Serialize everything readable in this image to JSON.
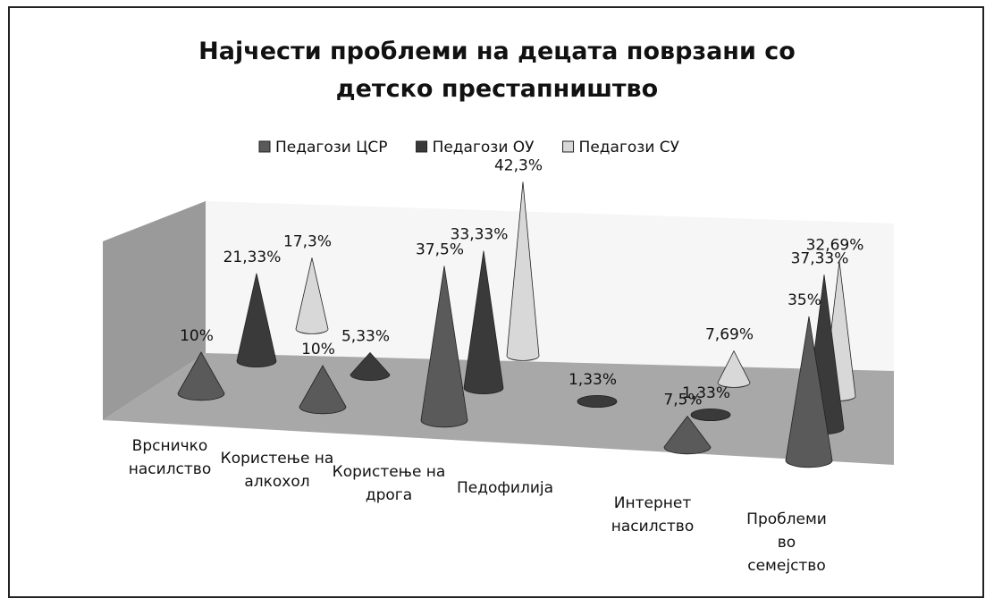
{
  "chart_data": {
    "type": "cone3d",
    "title": "Најчести проблеми на децата поврзани со детско престапништво",
    "categories": [
      "Врсничко насилство",
      "Користење на алкохол",
      "Користење на дрога",
      "Педофилија",
      "Интернет насилство",
      "Проблеми во семејство"
    ],
    "series": [
      {
        "name": "Педагози ЦСР",
        "color": "#5a5a5a",
        "values": [
          10,
          10,
          37.5,
          null,
          7.5,
          35
        ],
        "value_labels": [
          "10%",
          "10%",
          "37,5%",
          null,
          "7,5%",
          "35%"
        ]
      },
      {
        "name": "Педагози ОУ",
        "color": "#3a3a3a",
        "values": [
          21.33,
          5.33,
          33.33,
          1.33,
          1.33,
          37.33
        ],
        "value_labels": [
          "21,33%",
          "5,33%",
          "33,33%",
          "1,33%",
          "1,33%",
          "37,33%"
        ]
      },
      {
        "name": "Педагози СУ",
        "color": "#d8d8d8",
        "values": [
          17.3,
          null,
          42.3,
          null,
          7.69,
          32.69
        ],
        "value_labels": [
          "17,3%",
          null,
          "42,3%",
          null,
          "7,69%",
          "32,69%"
        ]
      }
    ],
    "legend": "top"
  }
}
